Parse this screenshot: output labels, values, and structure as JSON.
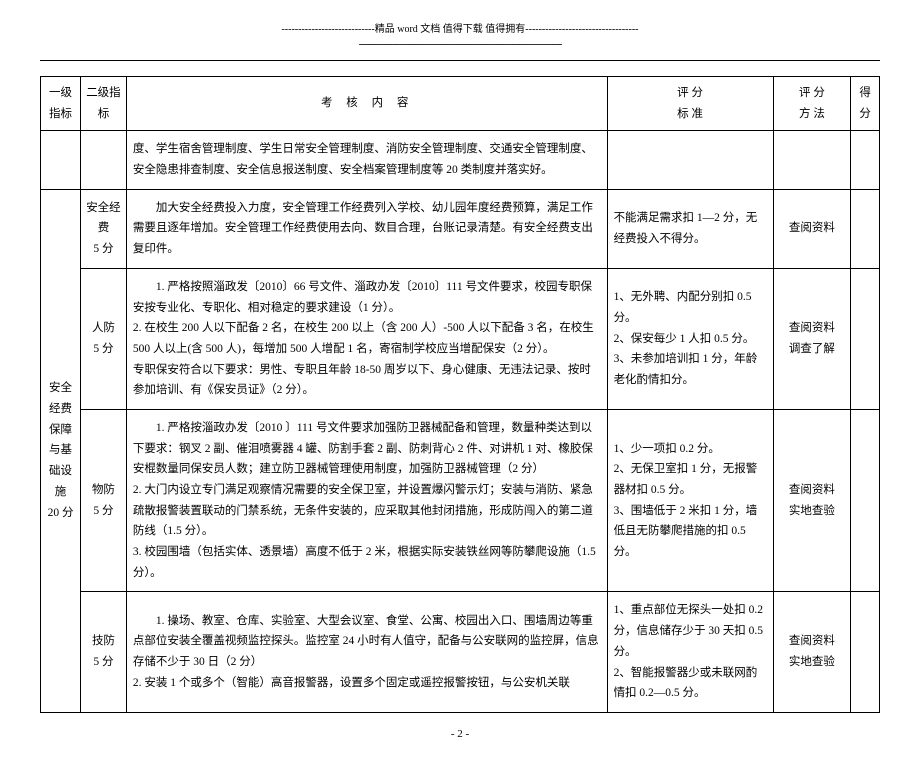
{
  "header": {
    "decoration_prefix": "----------------------------",
    "decoration_text": "精品 word 文档  值得下载  值得拥有",
    "decoration_suffix": "----------------------------------",
    "underline": "---------------------------------------------------------------------------------------"
  },
  "table": {
    "headers": {
      "level1": "一级指标",
      "level2": "二级指标",
      "content": "考核内容",
      "standard": "评 分\n标 准",
      "method": "评 分\n方 法",
      "score": "得分"
    },
    "level1_label": "安全经费保障与基础设施\n20 分",
    "row_continuation": {
      "content": "度、学生宿舍管理制度、学生日常安全管理制度、消防安全管理制度、交通安全管理制度、安全隐患排查制度、安全信息报送制度、安全档案管理制度等 20 类制度并落实好。"
    },
    "rows": [
      {
        "level2": "安全经费\n5 分",
        "content": "加大安全经费投入力度，安全管理工作经费列入学校、幼儿园年度经费预算，满足工作需要且逐年增加。安全管理工作经费使用去向、数目合理，台账记录清楚。有安全经费支出复印件。",
        "standard": "不能满足需求扣 1—2 分，无经费投入不得分。",
        "method": "查阅资料"
      },
      {
        "level2": "人防\n5 分",
        "content": "1. 严格按照淄政发〔2010〕66 号文件、淄政办发〔2010〕111 号文件要求，校园专职保安按专业化、专职化、相对稳定的要求建设（1 分）。\n2. 在校生 200 人以下配备 2 名，在校生 200 以上（含 200 人）-500 人以下配备 3 名，在校生 500 人以上(含 500 人)，每增加 500 人增配 1 名，寄宿制学校应当增配保安（2 分）。\n专职保安符合以下要求：男性、专职且年龄 18-50 周岁以下、身心健康、无违法记录、按时参加培训、有《保安员证》（2 分）。",
        "standard": "1、无外聘、内配分别扣 0.5 分。\n2、保安每少 1 人扣 0.5 分。\n3、未参加培训扣 1 分，年龄老化酌情扣分。",
        "method": "查阅资料\n调查了解"
      },
      {
        "level2": "物防\n5 分",
        "content": "1. 严格按淄政办发〔2010 〕111 号文件要求加强防卫器械配备和管理，数量种类达到以下要求：钢叉 2 副、催泪喷雾器 4 罐、防割手套 2 副、防刺背心 2 件、对讲机 1 对、橡胶保安棍数量同保安员人数；建立防卫器械管理使用制度，加强防卫器械管理（2 分）\n2. 大门内设立专门满足观察情况需要的安全保卫室，并设置爆闪警示灯；安装与消防、紧急疏散报警装置联动的门禁系统，无条件安装的，应采取其他封闭措施，形成防闯入的第二道防线（1.5 分）。\n3. 校园围墙（包括实体、透景墙）高度不低于 2 米，根据实际安装铁丝网等防攀爬设施（1.5 分）。",
        "standard": "1、少一项扣 0.2 分。\n2、无保卫室扣 1 分，无报警器材扣 0.5 分。\n3、围墙低于 2 米扣 1 分，墙低且无防攀爬措施的扣 0.5 分。",
        "method": "查阅资料\n实地查验"
      },
      {
        "level2": "技防\n5 分",
        "content": "1. 操场、教室、仓库、实验室、大型会议室、食堂、公寓、校园出入口、围墙周边等重点部位安装全覆盖视频监控探头。监控室 24 小时有人值守，配备与公安联网的监控屏，信息存储不少于 30 日（2 分）\n2. 安装 1 个或多个（智能）高音报警器，设置多个固定或遥控报警按钮，与公安机关联",
        "standard": "1、重点部位无探头一处扣 0.2 分，信息储存少于 30 天扣 0.5 分。\n2、智能报警器少或未联网酌情扣 0.2—0.5 分。",
        "method": "查阅资料\n实地查验"
      }
    ]
  },
  "footer": {
    "page": "- 2 -"
  }
}
